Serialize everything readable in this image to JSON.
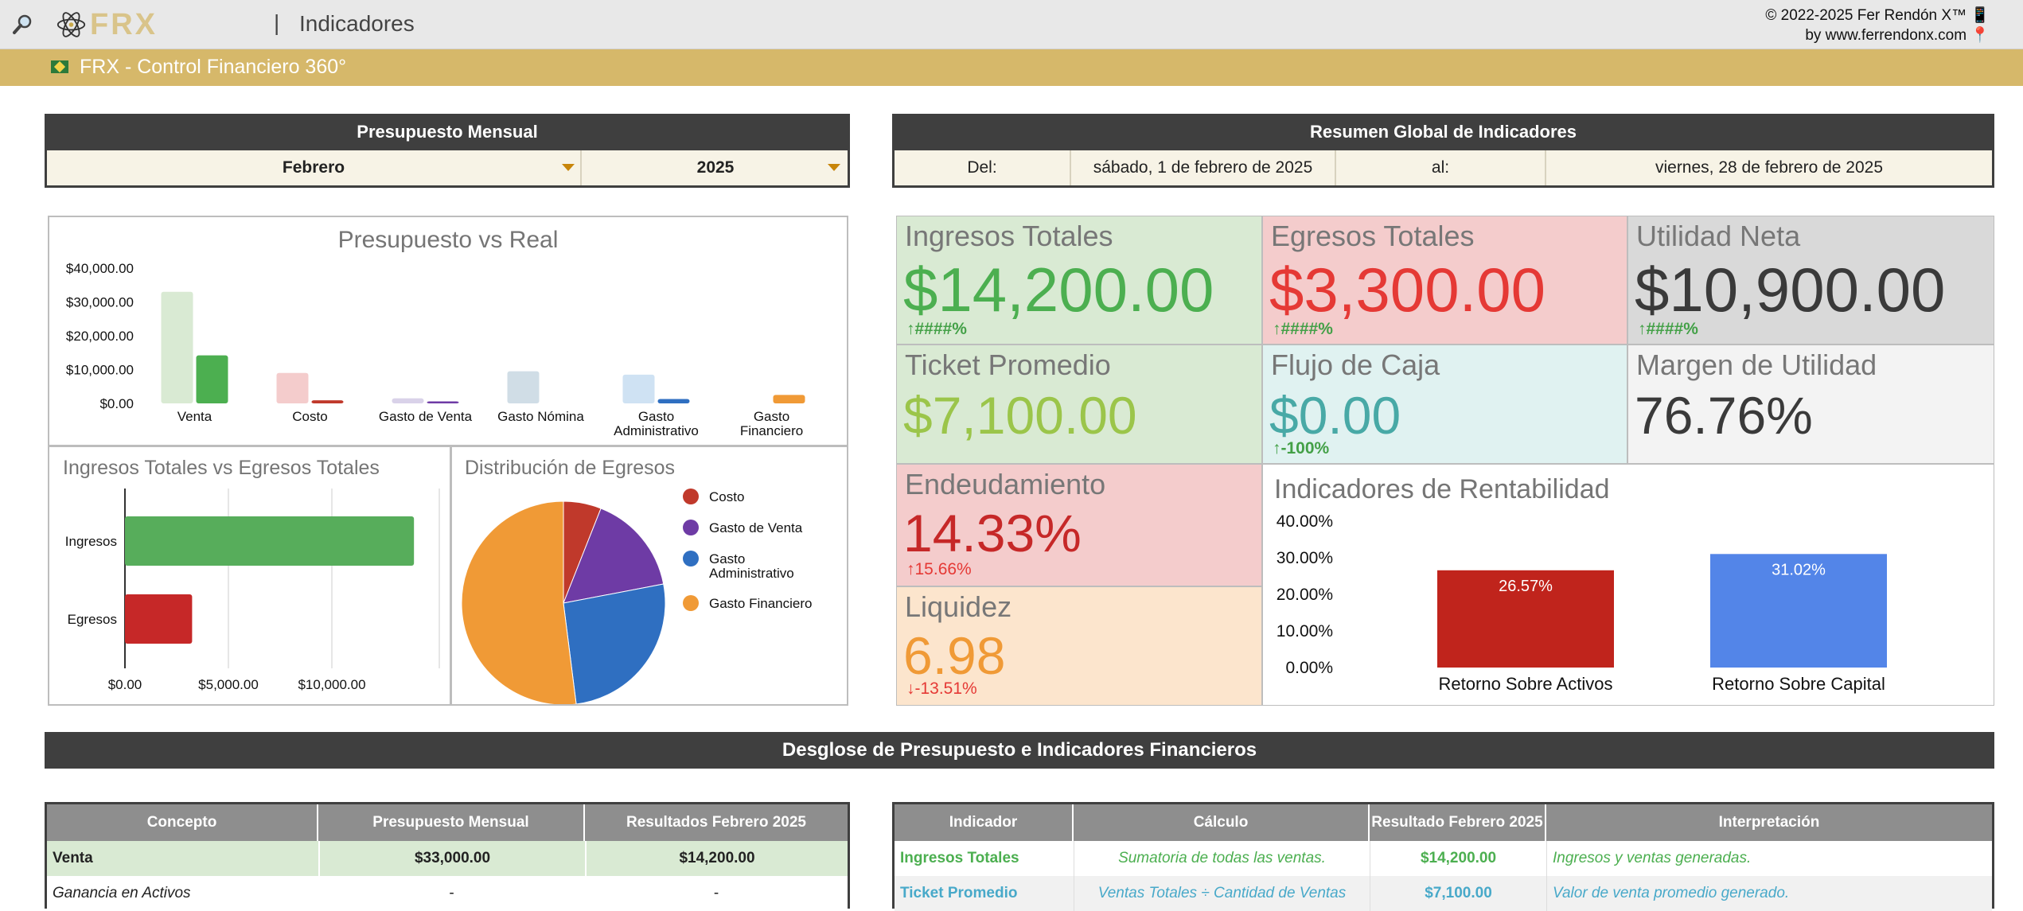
{
  "header": {
    "logo_text": "FRX",
    "separator": "|",
    "title": "Indicadores",
    "copyright": "© 2022-2025 Fer Rendón X™ 📱",
    "byline": "by www.ferrendonx.com 📍"
  },
  "banner": {
    "title": "FRX - Control Financiero 360°"
  },
  "presupuesto": {
    "header": "Presupuesto Mensual",
    "month": "Febrero",
    "year": "2025"
  },
  "resumen": {
    "header": "Resumen Global de Indicadores",
    "del_label": "Del:",
    "del_value": "sábado, 1 de febrero de 2025",
    "al_label": "al:",
    "al_value": "viernes, 28 de febrero de 2025"
  },
  "kpis": {
    "ingresos": {
      "label": "Ingresos Totales",
      "value": "$14,200.00",
      "delta": "####%",
      "arrow": "up"
    },
    "egresos": {
      "label": "Egresos Totales",
      "value": "$3,300.00",
      "delta": "####%",
      "arrow": "up"
    },
    "utilidad": {
      "label": "Utilidad Neta",
      "value": "$10,900.00",
      "delta": "####%",
      "arrow": "up"
    },
    "ticket": {
      "label": "Ticket Promedio",
      "value": "$7,100.00"
    },
    "flujo": {
      "label": "Flujo de Caja",
      "value": "$0.00",
      "delta": "-100%",
      "arrow": "up"
    },
    "margen": {
      "label": "Margen de Utilidad",
      "value": "76.76%"
    },
    "endeudamiento": {
      "label": "Endeudamiento",
      "value": "14.33%",
      "delta": "15.66%",
      "arrow": "up"
    },
    "liquidez": {
      "label": "Liquidez",
      "value": "6.98",
      "delta": "-13.51%",
      "arrow": "down"
    }
  },
  "colors": {
    "gold": "#d6b86a",
    "dark": "#3f3f3f",
    "green": "#4caf50",
    "red": "#e53935",
    "olive": "#9bc54a",
    "teal": "#48a9a6",
    "orange": "#f09a36",
    "blue": "#2f6fc1",
    "purple": "#6e3ba5",
    "light_blue": "#5385e8"
  },
  "chart_data": [
    {
      "type": "bar",
      "title": "Presupuesto vs Real",
      "categories": [
        "Venta",
        "Costo",
        "Gasto de Venta",
        "Gasto Nómina",
        "Gasto Administrativo",
        "Gasto Financiero"
      ],
      "category_lines": [
        [
          "Venta"
        ],
        [
          "Costo"
        ],
        [
          "Gasto de Venta"
        ],
        [
          "Gasto Nómina"
        ],
        [
          "Gasto",
          "Administrativo"
        ],
        [
          "Gasto",
          "Financiero"
        ]
      ],
      "series": [
        {
          "values": [
            33000,
            9000,
            1500,
            9500,
            8500,
            0
          ],
          "colors": [
            "#d9ead3",
            "#f4cccc",
            "#d9d2e9",
            "#d0dde6",
            "#cfe2f3",
            "#fce5cd"
          ]
        },
        {
          "values": [
            14200,
            900,
            600,
            0,
            1300,
            2500
          ],
          "colors": [
            "#4caf50",
            "#c0392b",
            "#6e3ba5",
            "#607d8b",
            "#2f6fc1",
            "#f09a36"
          ]
        }
      ],
      "ylim": [
        0,
        40000
      ],
      "yticks": [
        "$40,000.00",
        "$30,000.00",
        "$20,000.00",
        "$10,000.00",
        "$0.00"
      ],
      "xlabel": "",
      "ylabel": ""
    },
    {
      "type": "bar",
      "orientation": "horizontal",
      "title": "Ingresos Totales vs Egresos Totales",
      "categories": [
        "Ingresos",
        "Egresos"
      ],
      "values": [
        14200,
        3300
      ],
      "colors": [
        "#57ad5b",
        "#c62828"
      ],
      "xlim": [
        0,
        15000
      ],
      "xticks": [
        "$0.00",
        "$5,000.00",
        "$10,000.00"
      ]
    },
    {
      "type": "pie",
      "title": "Distribución de Egresos",
      "labels": [
        "Costo",
        "Gasto de Venta",
        "Gasto Administrativo",
        "Gasto Financiero"
      ],
      "legend_lines": [
        [
          "Costo"
        ],
        [
          "Gasto de Venta"
        ],
        [
          "Gasto",
          "Administrativo"
        ],
        [
          "Gasto Financiero"
        ]
      ],
      "values": [
        6,
        16,
        26,
        52
      ],
      "colors": [
        "#c0392b",
        "#6e3ba5",
        "#2f6fc1",
        "#f09a36"
      ],
      "legend": "right"
    },
    {
      "type": "bar",
      "title": "Indicadores de Rentabilidad",
      "categories": [
        "Retorno Sobre Activos",
        "Retorno Sobre Capital"
      ],
      "values": [
        26.57,
        31.02
      ],
      "data_labels": [
        "26.57%",
        "31.02%"
      ],
      "colors": [
        "#c0241c",
        "#5385e8"
      ],
      "ylim": [
        0,
        40
      ],
      "yticks": [
        "40.00%",
        "30.00%",
        "20.00%",
        "10.00%",
        "0.00%"
      ]
    }
  ],
  "desglose": {
    "header": "Desglose de Presupuesto e Indicadores Financieros"
  },
  "budget_table": {
    "columns": [
      "Concepto",
      "Presupuesto Mensual",
      "Resultados Febrero 2025"
    ],
    "rows": [
      [
        "Venta",
        "$33,000.00",
        "$14,200.00"
      ],
      [
        "Ganancia en Activos",
        "-",
        "-"
      ]
    ]
  },
  "indicator_table": {
    "columns": [
      "Indicador",
      "Cálculo",
      "Resultado Febrero 2025",
      "Interpretación"
    ],
    "rows": [
      [
        "Ingresos Totales",
        "Sumatoria de todas las ventas.",
        "$14,200.00",
        "Ingresos y ventas generadas."
      ],
      [
        "Ticket Promedio",
        "Ventas Totales ÷ Cantidad de Ventas",
        "$7,100.00",
        "Valor de venta promedio generado."
      ]
    ]
  }
}
